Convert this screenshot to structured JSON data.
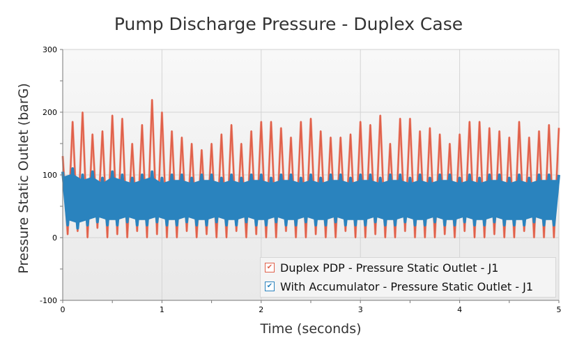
{
  "chart_data": {
    "type": "line",
    "title": "Pump Discharge Pressure - Duplex Case",
    "xlabel": "Time (seconds)",
    "ylabel": "Pressure Static Outlet (barG)",
    "xlim": [
      0,
      5
    ],
    "ylim": [
      -100,
      300
    ],
    "xticks": [
      "0",
      "1",
      "2",
      "3",
      "4",
      "5"
    ],
    "yticks": [
      "300",
      "200",
      "100",
      "0",
      "-100"
    ],
    "grid": true,
    "legend": "bottom-right",
    "x": [
      0,
      0.05,
      0.1,
      0.15,
      0.2,
      0.25,
      0.3,
      0.35,
      0.4,
      0.45,
      0.5,
      0.55,
      0.6,
      0.65,
      0.7,
      0.75,
      0.8,
      0.85,
      0.9,
      0.95,
      1,
      1.05,
      1.1,
      1.15,
      1.2,
      1.25,
      1.3,
      1.35,
      1.4,
      1.45,
      1.5,
      1.55,
      1.6,
      1.65,
      1.7,
      1.75,
      1.8,
      1.85,
      1.9,
      1.95,
      2,
      2.05,
      2.1,
      2.15,
      2.2,
      2.25,
      2.3,
      2.35,
      2.4,
      2.45,
      2.5,
      2.55,
      2.6,
      2.65,
      2.7,
      2.75,
      2.8,
      2.85,
      2.9,
      2.95,
      3,
      3.05,
      3.1,
      3.15,
      3.2,
      3.25,
      3.3,
      3.35,
      3.4,
      3.45,
      3.5,
      3.55,
      3.6,
      3.65,
      3.7,
      3.75,
      3.8,
      3.85,
      3.9,
      3.95,
      4,
      4.05,
      4.1,
      4.15,
      4.2,
      4.25,
      4.3,
      4.35,
      4.4,
      4.45,
      4.5,
      4.55,
      4.6,
      4.65,
      4.7,
      4.75,
      4.8,
      4.85,
      4.9,
      4.95,
      5
    ],
    "series": [
      {
        "name": "Duplex PDP - Pressure Static Outlet - J1",
        "color": "#e0604a",
        "values": [
          130,
          5,
          185,
          10,
          200,
          0,
          165,
          15,
          170,
          0,
          195,
          5,
          190,
          0,
          150,
          10,
          180,
          0,
          220,
          5,
          200,
          0,
          170,
          0,
          160,
          10,
          150,
          0,
          140,
          5,
          150,
          0,
          165,
          0,
          180,
          10,
          150,
          0,
          170,
          5,
          185,
          0,
          185,
          0,
          175,
          10,
          160,
          0,
          185,
          0,
          190,
          5,
          170,
          0,
          160,
          0,
          160,
          10,
          165,
          0,
          185,
          0,
          180,
          5,
          195,
          0,
          150,
          0,
          190,
          10,
          190,
          0,
          170,
          0,
          175,
          0,
          165,
          5,
          150,
          0,
          165,
          10,
          185,
          0,
          185,
          0,
          175,
          5,
          170,
          0,
          160,
          0,
          185,
          10,
          160,
          0,
          170,
          0,
          180,
          0,
          175
        ]
      },
      {
        "name": "With Accumulator - Pressure Static Outlet - J1",
        "color": "#2a83be",
        "values": [
          105,
          20,
          110,
          15,
          100,
          20,
          105,
          25,
          95,
          20,
          105,
          20,
          100,
          25,
          95,
          20,
          100,
          20,
          105,
          25,
          95,
          20,
          100,
          20,
          100,
          25,
          95,
          20,
          100,
          20,
          100,
          25,
          95,
          20,
          100,
          20,
          95,
          25,
          100,
          20,
          100,
          20,
          95,
          25,
          100,
          20,
          100,
          20,
          95,
          25,
          100,
          20,
          95,
          20,
          100,
          25,
          100,
          20,
          95,
          20,
          100,
          20,
          100,
          25,
          95,
          20,
          100,
          20,
          100,
          25,
          95,
          20,
          100,
          20,
          95,
          25,
          100,
          20,
          100,
          20,
          95,
          25,
          100,
          20,
          95,
          20,
          100,
          25,
          100,
          20,
          95,
          20,
          100,
          20,
          95,
          25,
          100,
          20,
          100,
          20,
          100
        ]
      }
    ]
  }
}
